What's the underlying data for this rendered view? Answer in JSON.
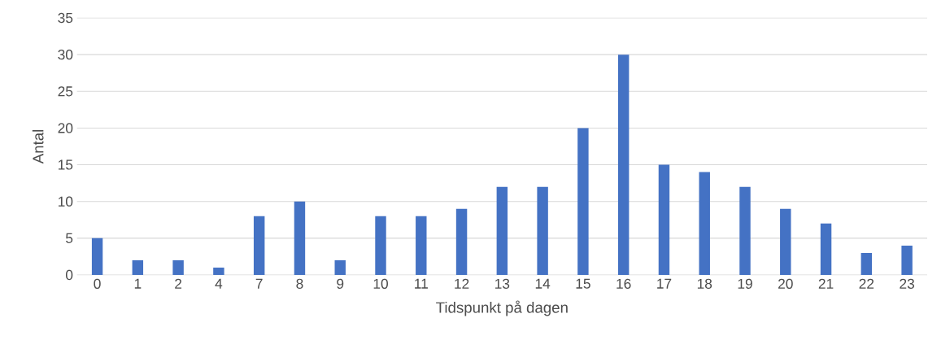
{
  "chart_data": {
    "type": "bar",
    "xlabel": "Tidspunkt på dagen",
    "ylabel": "Antal",
    "categories": [
      "0",
      "1",
      "2",
      "4",
      "7",
      "8",
      "9",
      "10",
      "11",
      "12",
      "13",
      "14",
      "15",
      "16",
      "17",
      "18",
      "19",
      "20",
      "21",
      "22",
      "23"
    ],
    "values": [
      5,
      2,
      2,
      1,
      8,
      10,
      2,
      8,
      8,
      9,
      12,
      12,
      20,
      30,
      15,
      14,
      12,
      9,
      7,
      3,
      4
    ],
    "color": "#4472c4",
    "ylim": [
      0,
      35
    ],
    "yticks": [
      0,
      5,
      10,
      15,
      20,
      25,
      30,
      35
    ],
    "grid": "y"
  }
}
